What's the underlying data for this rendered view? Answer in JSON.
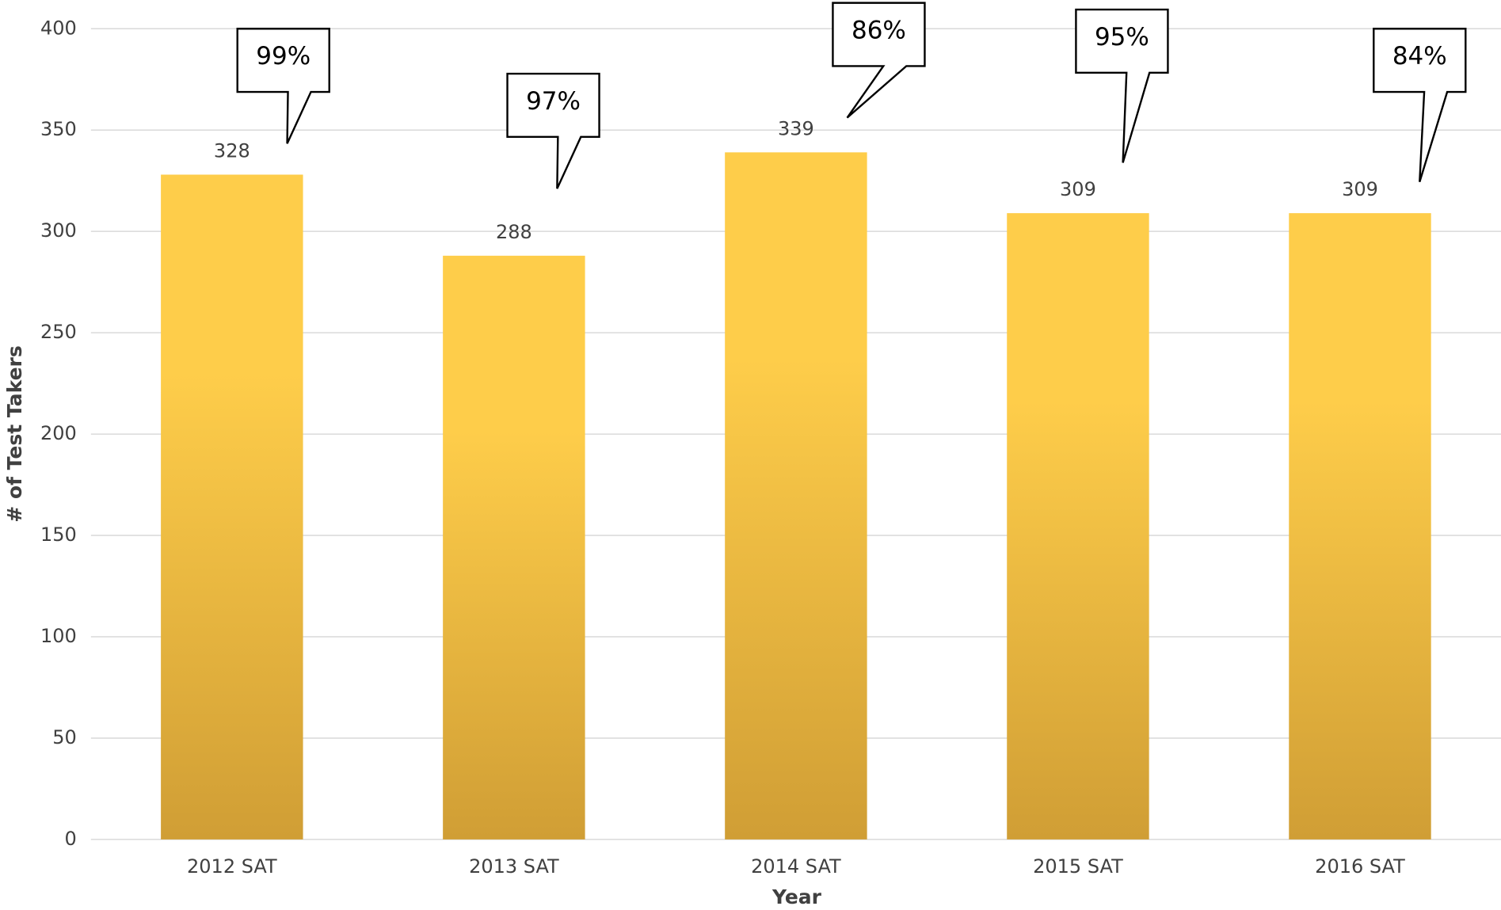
{
  "chart_data": {
    "type": "bar",
    "categories": [
      "2012 SAT",
      "2013 SAT",
      "2014 SAT",
      "2015 SAT",
      "2016 SAT"
    ],
    "values": [
      328,
      288,
      339,
      309,
      309
    ],
    "annotations": [
      "99%",
      "97%",
      "86%",
      "95%",
      "84%"
    ],
    "x_label": "Year",
    "y_label": "# of Test Takers",
    "color": [
      "#fecd4a",
      "#d09e35"
    ],
    "ylim": [
      0,
      400
    ],
    "yticks": [
      0,
      50,
      100,
      150,
      200,
      250,
      300,
      350,
      400
    ],
    "grid": true
  }
}
